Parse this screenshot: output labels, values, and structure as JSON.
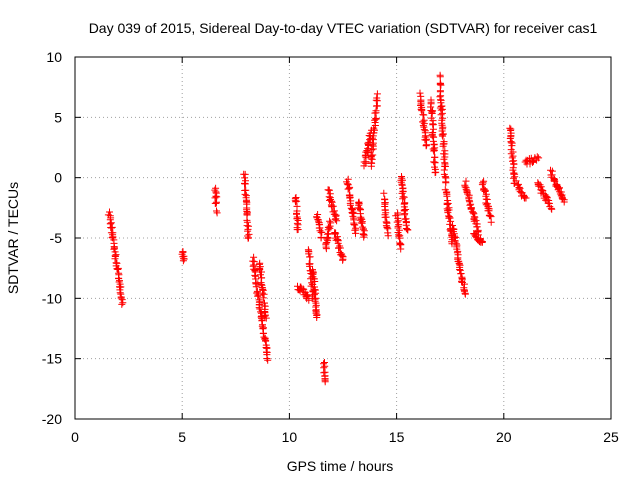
{
  "chart_data": {
    "type": "scatter",
    "title": "Day 039 of 2015, Sidereal Day-to-day VTEC variation (SDTVAR) for receiver cas1",
    "xlabel": "GPS time / hours",
    "ylabel": "SDTVAR / TECUs",
    "xlim": [
      0,
      25
    ],
    "ylim": [
      -20,
      10
    ],
    "xticks": [
      "0",
      "5",
      "10",
      "15",
      "20",
      "25"
    ],
    "yticks": [
      "-20",
      "-15",
      "-10",
      "-5",
      "0",
      "5",
      "10"
    ],
    "grid": true,
    "marker": "+",
    "color": "#ff0000",
    "segments": [
      [
        1.6,
        -2.9,
        2.2,
        -10.4
      ],
      [
        5.0,
        -6.1,
        5.1,
        -6.8
      ],
      [
        6.55,
        -0.8,
        6.6,
        -2.7
      ],
      [
        7.9,
        0.3,
        8.1,
        -5.0
      ],
      [
        8.3,
        -6.8,
        9.0,
        -15.1
      ],
      [
        8.6,
        -7.0,
        8.9,
        -11.5
      ],
      [
        10.3,
        -1.5,
        10.4,
        -4.5
      ],
      [
        10.4,
        -9.0,
        10.9,
        -10.0
      ],
      [
        10.9,
        -6.0,
        11.1,
        -9.8
      ],
      [
        11.1,
        -7.5,
        11.3,
        -11.8
      ],
      [
        11.3,
        -3.0,
        11.5,
        -5.0
      ],
      [
        11.6,
        -15.3,
        11.7,
        -17.0
      ],
      [
        11.7,
        -6.0,
        11.9,
        -3.6
      ],
      [
        11.8,
        -1.0,
        12.2,
        -3.5
      ],
      [
        12.1,
        -4.5,
        12.5,
        -6.8
      ],
      [
        12.7,
        -0.2,
        13.1,
        -4.5
      ],
      [
        13.2,
        -2.0,
        13.5,
        -5.0
      ],
      [
        13.5,
        1.0,
        13.8,
        3.8
      ],
      [
        13.8,
        1.0,
        14.1,
        6.7
      ],
      [
        14.4,
        -1.5,
        14.6,
        -4.8
      ],
      [
        15.0,
        -3.0,
        15.2,
        -5.8
      ],
      [
        15.2,
        0.3,
        15.5,
        -4.5
      ],
      [
        16.1,
        6.8,
        16.4,
        2.5
      ],
      [
        16.6,
        6.5,
        16.8,
        0.5
      ],
      [
        17.0,
        8.3,
        17.3,
        -0.5
      ],
      [
        17.3,
        -1.0,
        17.6,
        -5.5
      ],
      [
        17.6,
        -4.0,
        18.2,
        -9.7
      ],
      [
        18.2,
        -0.5,
        18.8,
        -4.5
      ],
      [
        18.6,
        -4.5,
        19.0,
        -5.5
      ],
      [
        19.0,
        -0.3,
        19.4,
        -3.5
      ],
      [
        20.3,
        4.2,
        20.5,
        -0.5
      ],
      [
        20.6,
        -0.5,
        21.0,
        -1.8
      ],
      [
        21.0,
        1.3,
        21.6,
        1.5
      ],
      [
        21.6,
        -0.5,
        22.2,
        -2.5
      ],
      [
        22.2,
        0.5,
        22.8,
        -2.0
      ]
    ]
  }
}
